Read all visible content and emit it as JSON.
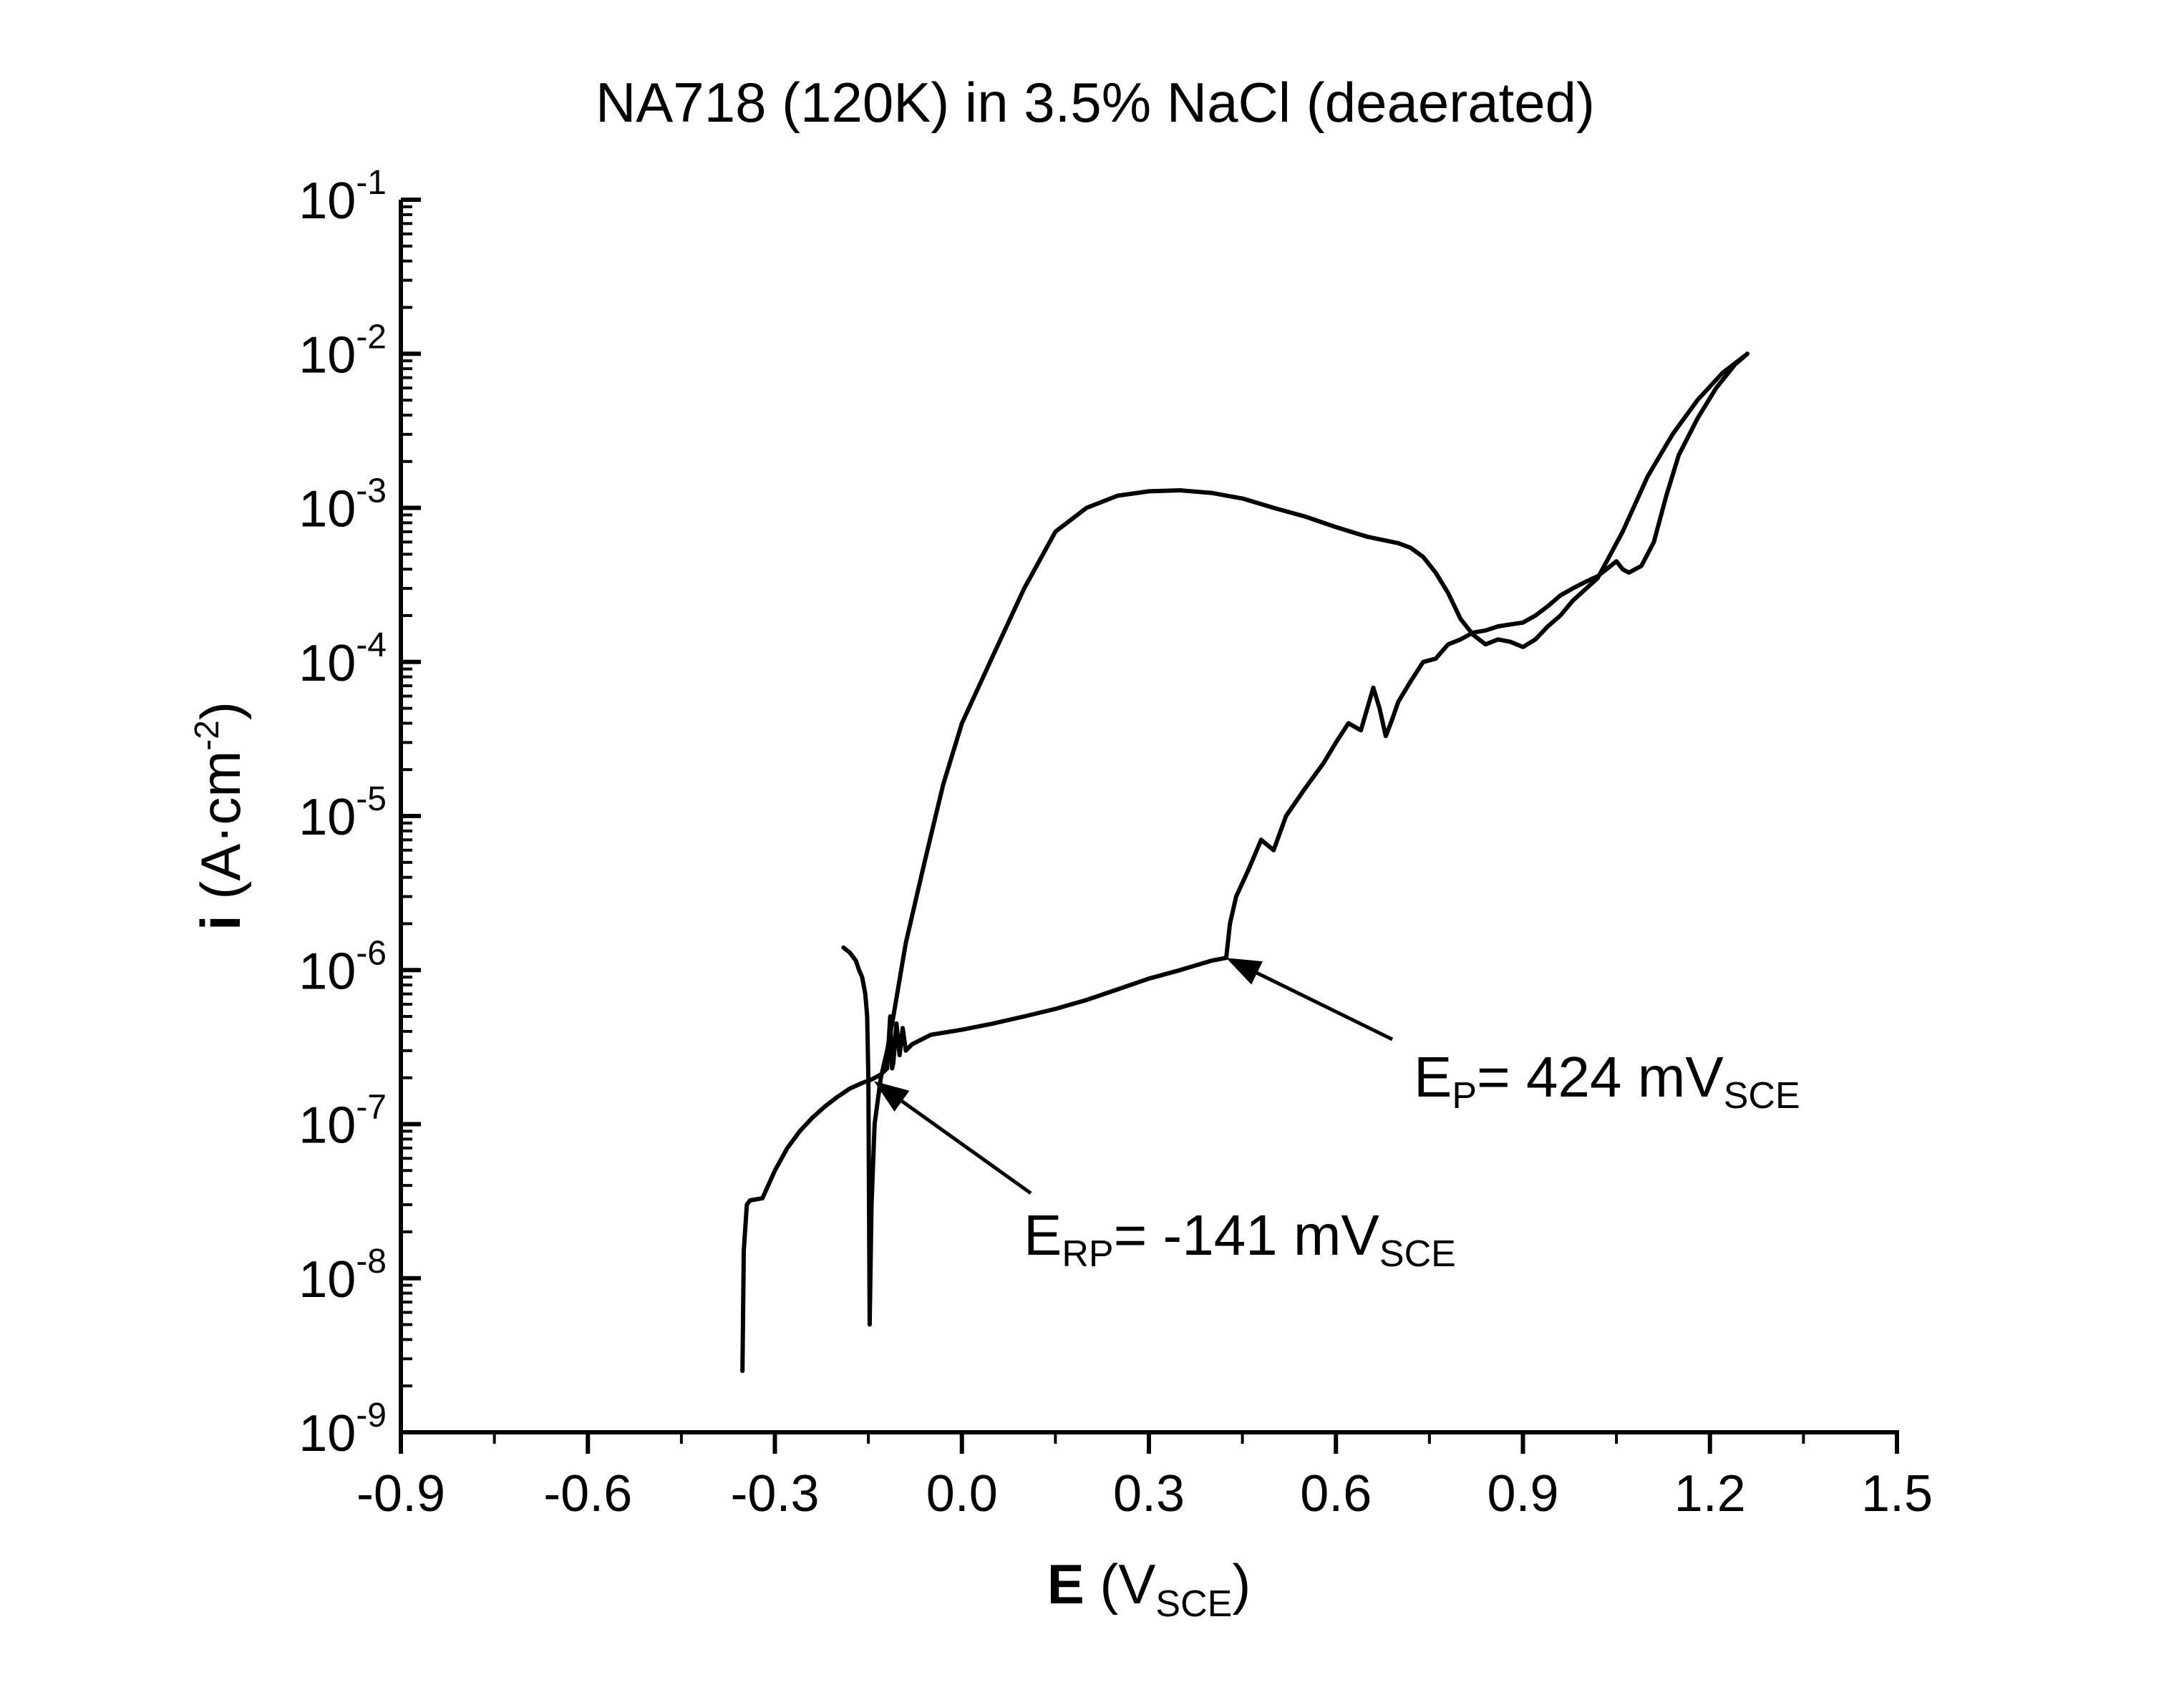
{
  "chart_data": {
    "type": "line",
    "title": "NA718 (120K) in 3.5% NaCl (deaerated)",
    "xlabel": {
      "bold": "E",
      "rest": " (V",
      "sub": "SCE",
      "close": ")"
    },
    "ylabel": {
      "bold": "i",
      "rest": " (A·cm",
      "sup": "-2",
      "close": ")"
    },
    "xlim": [
      -0.9,
      1.5
    ],
    "ylim": [
      1e-09,
      0.1
    ],
    "yscale": "log",
    "x_ticks": [
      "-0.9",
      "-0.6",
      "-0.3",
      "0.0",
      "0.3",
      "0.6",
      "0.9",
      "1.2",
      "1.5"
    ],
    "y_ticks": [
      {
        "base": "10",
        "exp": "-9"
      },
      {
        "base": "10",
        "exp": "-8"
      },
      {
        "base": "10",
        "exp": "-7"
      },
      {
        "base": "10",
        "exp": "-6"
      },
      {
        "base": "10",
        "exp": "-5"
      },
      {
        "base": "10",
        "exp": "-4"
      },
      {
        "base": "10",
        "exp": "-3"
      },
      {
        "base": "10",
        "exp": "-2"
      },
      {
        "base": "10",
        "exp": "-1"
      }
    ],
    "grid": false,
    "series": [
      {
        "x": [
          -0.35,
          -0.352,
          -0.35,
          -0.345,
          -0.34,
          -0.32,
          -0.3,
          -0.28,
          -0.26,
          -0.24,
          -0.22,
          -0.2,
          -0.18,
          -0.16,
          -0.145,
          -0.13,
          -0.12,
          -0.115,
          -0.112,
          -0.11,
          -0.105,
          -0.1,
          -0.095,
          -0.09,
          -0.08,
          -0.05,
          0.0,
          0.05,
          0.1,
          0.15,
          0.2,
          0.25,
          0.3,
          0.35,
          0.4,
          0.424,
          0.43,
          0.44,
          0.46,
          0.48,
          0.5,
          0.52,
          0.55,
          0.58,
          0.6,
          0.62,
          0.64,
          0.66,
          0.67,
          0.68,
          0.69,
          0.7,
          0.72,
          0.74,
          0.76,
          0.78,
          0.8,
          0.82,
          0.84,
          0.86,
          0.88,
          0.9,
          0.92,
          0.94,
          0.96,
          0.98,
          1.0,
          1.02,
          1.05,
          1.06,
          1.07,
          1.09,
          1.11,
          1.13,
          1.15,
          1.18,
          1.21,
          1.24,
          1.26
        ],
        "y": [
          1.4e-08,
          2.5e-09,
          1.5e-08,
          3e-08,
          3.2e-08,
          3.3e-08,
          5e-08,
          7e-08,
          9e-08,
          1.1e-07,
          1.3e-07,
          1.5e-07,
          1.7e-07,
          1.85e-07,
          1.95e-07,
          2.1e-07,
          2.3e-07,
          5e-07,
          2.3e-07,
          2.5e-07,
          4.5e-07,
          2.8e-07,
          4.2e-07,
          3e-07,
          3.3e-07,
          3.8e-07,
          4.1e-07,
          4.5e-07,
          5e-07,
          5.6e-07,
          6.4e-07,
          7.5e-07,
          8.8e-07,
          1e-06,
          1.15e-06,
          1.2e-06,
          2e-06,
          3e-06,
          4.5e-06,
          7e-06,
          6e-06,
          1e-05,
          1.5e-05,
          2.2e-05,
          3e-05,
          4e-05,
          3.6e-05,
          6.8e-05,
          5e-05,
          3.3e-05,
          4.2e-05,
          5.5e-05,
          7.5e-05,
          0.0001,
          0.000105,
          0.00013,
          0.00014,
          0.000155,
          0.00016,
          0.00017,
          0.000175,
          0.00018,
          0.0002,
          0.00023,
          0.00027,
          0.0003,
          0.00033,
          0.00036,
          0.00045,
          0.0004,
          0.00038,
          0.00042,
          0.0006,
          0.0012,
          0.0022,
          0.0038,
          0.006,
          0.0085,
          0.01
        ]
      },
      {
        "x": [
          1.26,
          1.22,
          1.18,
          1.14,
          1.1,
          1.06,
          1.02,
          0.98,
          0.96,
          0.94,
          0.92,
          0.9,
          0.88,
          0.86,
          0.84,
          0.82,
          0.8,
          0.78,
          0.76,
          0.74,
          0.72,
          0.7,
          0.65,
          0.6,
          0.55,
          0.5,
          0.45,
          0.4,
          0.35,
          0.3,
          0.25,
          0.2,
          0.15,
          0.1,
          0.05,
          0.0,
          -0.03,
          -0.06,
          -0.09,
          -0.11,
          -0.12,
          -0.13,
          -0.14,
          -0.145,
          -0.148,
          -0.15,
          -0.152,
          -0.155,
          -0.16,
          -0.165,
          -0.17,
          -0.18,
          -0.19
        ],
        "y": [
          0.01,
          0.0075,
          0.005,
          0.003,
          0.0016,
          0.0007,
          0.00035,
          0.00025,
          0.0002,
          0.00017,
          0.00014,
          0.000125,
          0.000135,
          0.00014,
          0.00013,
          0.00015,
          0.00019,
          0.00028,
          0.00038,
          0.00048,
          0.00055,
          0.00059,
          0.00065,
          0.00075,
          0.00088,
          0.001,
          0.00115,
          0.00125,
          0.0013,
          0.00128,
          0.0012,
          0.001,
          0.0007,
          0.0003,
          0.00011,
          4e-05,
          1.6e-05,
          5e-06,
          1.5e-06,
          5e-07,
          3e-07,
          2e-07,
          1e-07,
          3e-08,
          5e-09,
          2e-07,
          5e-07,
          7e-07,
          9e-07,
          1e-06,
          1.15e-06,
          1.3e-06,
          1.4e-06
        ]
      }
    ],
    "annotations": [
      {
        "main": "E",
        "sub": "P",
        "mid": "= 424 mV",
        "sub2": "SCE",
        "point": [
          0.424,
          1.2e-06
        ]
      },
      {
        "main": "E",
        "sub": "RP",
        "mid": "= -141 mV",
        "sub2": "SCE",
        "point": [
          -0.141,
          1.9e-07
        ]
      }
    ]
  }
}
